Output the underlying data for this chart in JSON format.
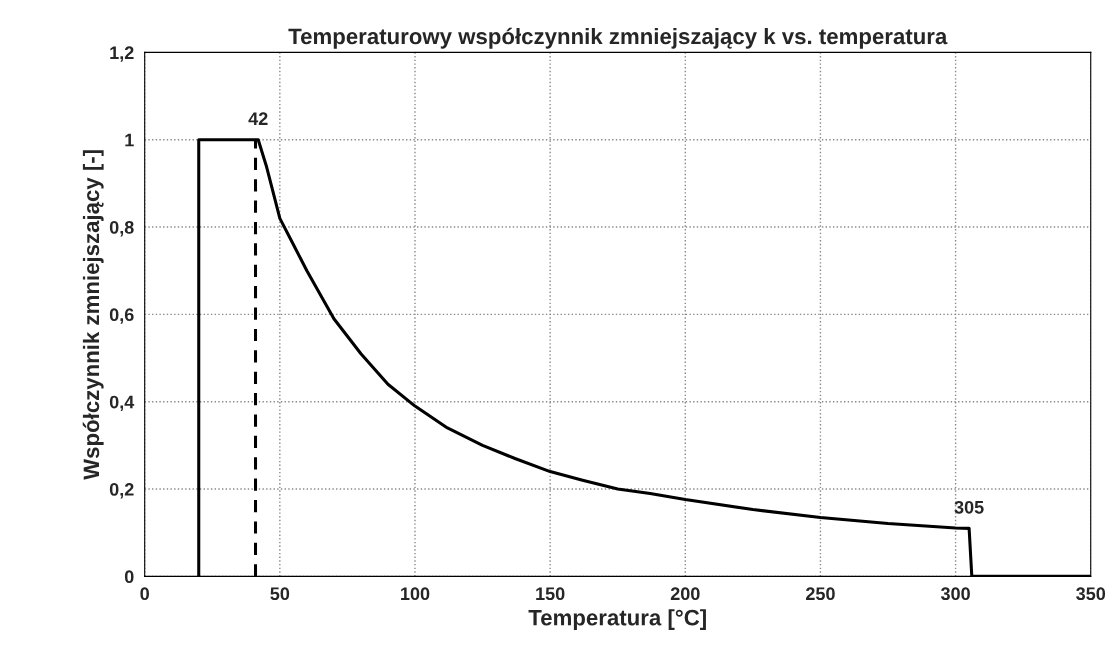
{
  "chart_data": {
    "type": "line",
    "title": "Temperaturowy współczynnik zmniejszający k vs. temperatura",
    "xlabel": "Temperatura [°C]",
    "ylabel": "Współczynnik zmniejszający [-]",
    "series": [
      {
        "color": "#000000",
        "line_style": "solid",
        "x": [
          20,
          20,
          42,
          45,
          50,
          55,
          60,
          70,
          80,
          90,
          100,
          112,
          125,
          137,
          150,
          162,
          175,
          187,
          200,
          225,
          250,
          275,
          300,
          305,
          306,
          350
        ],
        "values": [
          0,
          1,
          1,
          0.94,
          0.82,
          0.76,
          0.7,
          0.59,
          0.51,
          0.44,
          0.39,
          0.34,
          0.3,
          0.27,
          0.24,
          0.22,
          0.2,
          0.19,
          0.176,
          0.153,
          0.135,
          0.121,
          0.111,
          0.11,
          0,
          0
        ]
      },
      {
        "color": "#000000",
        "line_style": "dashed",
        "x": [
          41,
          41
        ],
        "values": [
          0,
          1
        ]
      }
    ],
    "annotations": [
      {
        "text": "42",
        "x": 42,
        "y": 1
      },
      {
        "text": "305",
        "x": 305,
        "y": 0.11
      }
    ],
    "xlim": [
      0,
      350
    ],
    "xticks": [
      0,
      50,
      100,
      150,
      200,
      250,
      300,
      350
    ],
    "ylim": [
      0,
      1.2
    ],
    "yticks": [
      {
        "value": 0,
        "label": "0"
      },
      {
        "value": 0.2,
        "label": "0,2"
      },
      {
        "value": 0.4,
        "label": "0,4"
      },
      {
        "value": 0.6,
        "label": "0,6"
      },
      {
        "value": 0.8,
        "label": "0,8"
      },
      {
        "value": 1,
        "label": "1"
      },
      {
        "value": 1.2,
        "label": "1,2"
      }
    ],
    "grid": true,
    "marker": "none"
  }
}
